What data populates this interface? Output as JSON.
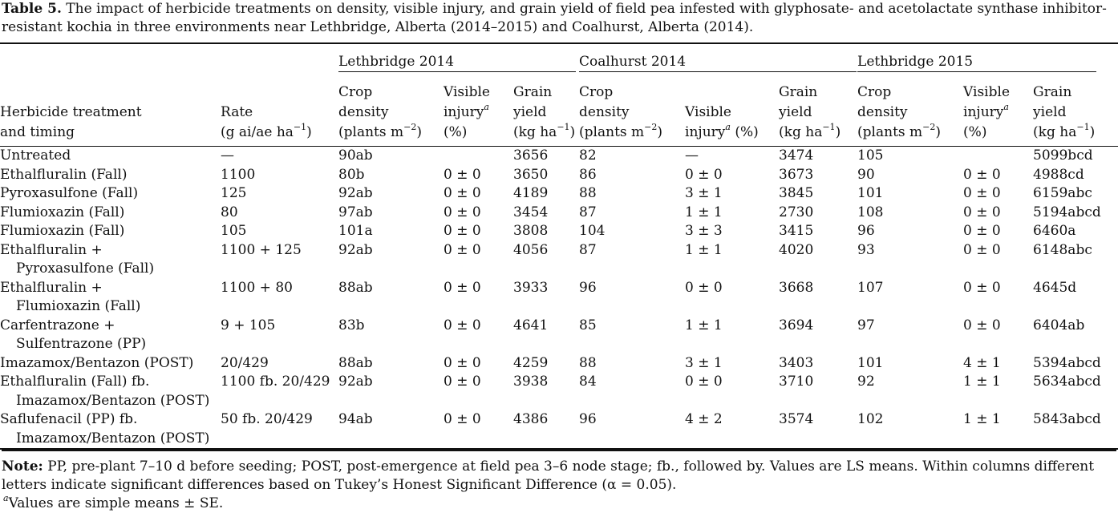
{
  "caption": {
    "label": "Table 5.",
    "text": " The impact of herbicide treatments on density, visible injury, and grain yield of field pea infested with glyphosate- and acetolactate synthase inhibitor-resistant kochia in three environments near Lethbridge, Alberta (2014–2015) and Coalhurst, Alberta (2014)."
  },
  "groups": [
    "Lethbridge 2014",
    "Coalhurst 2014",
    "Lethbridge 2015"
  ],
  "headers": {
    "treatment": [
      "Herbicide treatment",
      "and timing"
    ],
    "rate": [
      "Rate",
      "(g ai/ae ha",
      "−1",
      ")"
    ],
    "density": [
      "Crop",
      "density",
      "(plants m",
      "−2",
      ")"
    ],
    "injury": [
      "Visible",
      "injury",
      "a",
      "(%)"
    ],
    "yield": [
      "Grain",
      "yield",
      "(kg ha",
      "−1",
      ")"
    ]
  },
  "rows": [
    {
      "t1": "Untreated",
      "t2": "",
      "rate": "—",
      "v": [
        "90ab",
        "",
        "3656",
        "82",
        "—",
        "3474",
        "105",
        "",
        "5099bcd"
      ]
    },
    {
      "t1": "Ethalfluralin (Fall)",
      "t2": "",
      "rate": "1100",
      "v": [
        "80b",
        "0 ± 0",
        "3650",
        "86",
        "0 ± 0",
        "3673",
        "90",
        "0 ± 0",
        "4988cd"
      ]
    },
    {
      "t1": "Pyroxasulfone (Fall)",
      "t2": "",
      "rate": "125",
      "v": [
        "92ab",
        "0 ± 0",
        "4189",
        "88",
        "3 ± 1",
        "3845",
        "101",
        "0 ± 0",
        "6159abc"
      ]
    },
    {
      "t1": "Flumioxazin (Fall)",
      "t2": "",
      "rate": "80",
      "v": [
        "97ab",
        "0 ± 0",
        "3454",
        "87",
        "1 ± 1",
        "2730",
        "108",
        "0 ± 0",
        "5194abcd"
      ]
    },
    {
      "t1": "Flumioxazin (Fall)",
      "t2": "",
      "rate": "105",
      "v": [
        "101a",
        "0 ± 0",
        "3808",
        "104",
        "3 ± 3",
        "3415",
        "96",
        "0 ± 0",
        "6460a"
      ]
    },
    {
      "t1": "Ethalfluralin +",
      "t2": "Pyroxasulfone (Fall)",
      "rate": "1100 + 125",
      "v": [
        "92ab",
        "0 ± 0",
        "4056",
        "87",
        "1 ± 1",
        "4020",
        "93",
        "0 ± 0",
        "6148abc"
      ]
    },
    {
      "t1": "Ethalfluralin +",
      "t2": "Flumioxazin (Fall)",
      "rate": "1100 + 80",
      "v": [
        "88ab",
        "0 ± 0",
        "3933",
        "96",
        "0 ± 0",
        "3668",
        "107",
        "0 ± 0",
        "4645d"
      ]
    },
    {
      "t1": "Carfentrazone +",
      "t2": "Sulfentrazone (PP)",
      "rate": "9 + 105",
      "v": [
        "83b",
        "0 ± 0",
        "4641",
        "85",
        "1 ± 1",
        "3694",
        "97",
        "0 ± 0",
        "6404ab"
      ]
    },
    {
      "t1": "Imazamox/Bentazon (POST)",
      "t2": "",
      "rate": "20/429",
      "v": [
        "88ab",
        "0 ± 0",
        "4259",
        "88",
        "3 ± 1",
        "3403",
        "101",
        "4 ± 1",
        "5394abcd"
      ]
    },
    {
      "t1": "Ethalfluralin (Fall) fb.",
      "t2": "Imazamox/Bentazon (POST)",
      "rate": "1100 fb. 20/429",
      "v": [
        "92ab",
        "0 ± 0",
        "3938",
        "84",
        "0 ± 0",
        "3710",
        "92",
        "1 ± 1",
        "5634abcd"
      ]
    },
    {
      "t1": "Saflufenacil (PP) fb.",
      "t2": "Imazamox/Bentazon (POST)",
      "rate": "50 fb. 20/429",
      "v": [
        "94ab",
        "0 ± 0",
        "4386",
        "96",
        "4 ± 2",
        "3574",
        "102",
        "1 ± 1",
        "5843abcd"
      ]
    }
  ],
  "notes": {
    "label": "Note:",
    "text": " PP, pre-plant 7–10 d before seeding; POST, post-emergence at field pea 3–6 node stage; fb., followed by. Values are LS means. Within columns different letters indicate significant differences based on Tukey’s Honest Significant Difference (α = 0.05).",
    "foot_mark": "a",
    "foot_text": "Values are simple means ± SE."
  }
}
